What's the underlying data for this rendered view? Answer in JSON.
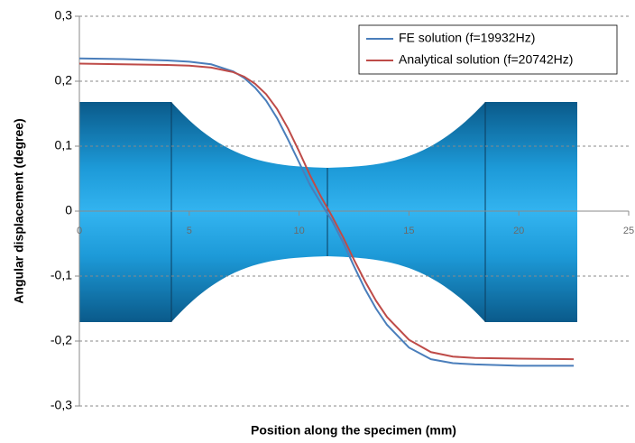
{
  "chart_data": {
    "type": "line",
    "x_label": "Position along the specimen (mm)",
    "y_label": "Angular displacement (degree)",
    "x": [
      0,
      2,
      4,
      5,
      6,
      7,
      7.5,
      8,
      8.5,
      9,
      9.5,
      10,
      10.5,
      11,
      11.5,
      12,
      12.5,
      13,
      13.5,
      14,
      15,
      16,
      17,
      18,
      20,
      22.5
    ],
    "series": [
      {
        "name": "FE solution (f=19932Hz)",
        "color": "#4a7ebb",
        "values": [
          0.235,
          0.234,
          0.232,
          0.23,
          0.226,
          0.215,
          0.205,
          0.19,
          0.17,
          0.143,
          0.11,
          0.075,
          0.04,
          0.012,
          -0.015,
          -0.048,
          -0.085,
          -0.12,
          -0.15,
          -0.175,
          -0.21,
          -0.228,
          -0.234,
          -0.236,
          -0.238,
          -0.238
        ]
      },
      {
        "name": "Analytical solution (f=20742Hz)",
        "color": "#be4b48",
        "values": [
          0.227,
          0.226,
          0.225,
          0.224,
          0.221,
          0.214,
          0.207,
          0.196,
          0.18,
          0.157,
          0.127,
          0.092,
          0.055,
          0.022,
          -0.008,
          -0.04,
          -0.075,
          -0.108,
          -0.138,
          -0.163,
          -0.198,
          -0.217,
          -0.224,
          -0.226,
          -0.227,
          -0.228
        ]
      }
    ],
    "xlim": [
      0,
      25
    ],
    "xticks": [
      0,
      5,
      10,
      15,
      20,
      25
    ],
    "ylim": [
      -0.3,
      0.3
    ],
    "yticks": [
      {
        "value": -0.3,
        "label": "-0,3"
      },
      {
        "value": -0.2,
        "label": "-0,2"
      },
      {
        "value": -0.1,
        "label": "-0,1"
      },
      {
        "value": 0,
        "label": "0"
      },
      {
        "value": 0.1,
        "label": "0,1"
      },
      {
        "value": 0.2,
        "label": "0,2"
      },
      {
        "value": 0.3,
        "label": "0,3"
      }
    ],
    "grid": true,
    "legend": "top-right"
  }
}
